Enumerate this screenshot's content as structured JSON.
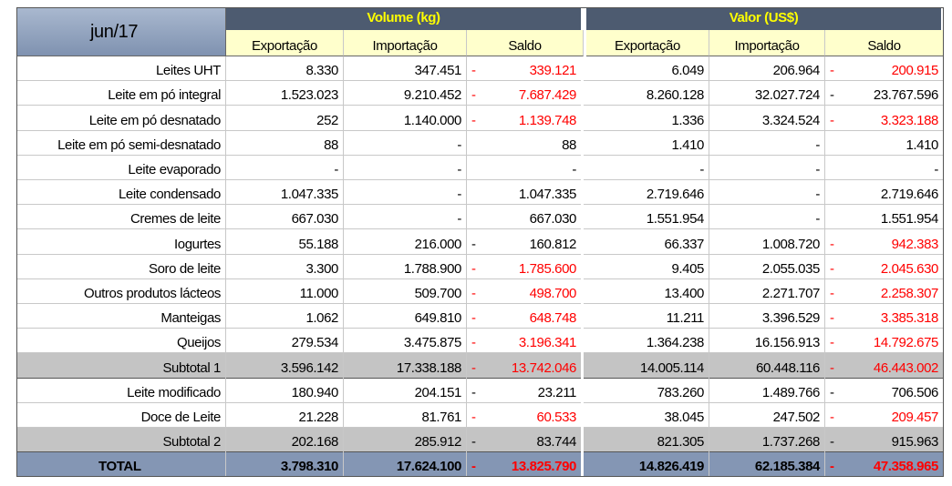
{
  "header": {
    "corner": "jun/17",
    "groups": [
      "Volume (kg)",
      "Valor (US$)"
    ],
    "columns": [
      "Exportação",
      "Importação",
      "Saldo",
      "Exportação",
      "Importação",
      "Saldo"
    ]
  },
  "table": {
    "rows": [
      {
        "label": "Leites UHT",
        "cells": [
          "8.330",
          "347.451",
          "-",
          "339.121",
          "6.049",
          "206.964",
          "-",
          "200.915"
        ],
        "red": [
          true,
          true
        ]
      },
      {
        "label": "Leite em pó integral",
        "cells": [
          "1.523.023",
          "9.210.452",
          "-",
          "7.687.429",
          "8.260.128",
          "32.027.724",
          "-",
          "23.767.596"
        ],
        "red": [
          true,
          false
        ]
      },
      {
        "label": "Leite em pó desnatado",
        "cells": [
          "252",
          "1.140.000",
          "-",
          "1.139.748",
          "1.336",
          "3.324.524",
          "-",
          "3.323.188"
        ],
        "red": [
          true,
          true
        ]
      },
      {
        "label": "Leite em pó semi-desnatado",
        "cells": [
          "88",
          "-",
          null,
          "88",
          "1.410",
          "-",
          null,
          "1.410"
        ],
        "red": [
          false,
          false
        ]
      },
      {
        "label": "Leite evaporado",
        "cells": [
          "-",
          "-",
          null,
          "-",
          "-",
          "-",
          null,
          "-"
        ],
        "red": [
          false,
          false
        ]
      },
      {
        "label": "Leite condensado",
        "cells": [
          "1.047.335",
          "-",
          null,
          "1.047.335",
          "2.719.646",
          "-",
          null,
          "2.719.646"
        ],
        "red": [
          false,
          false
        ]
      },
      {
        "label": "Cremes de leite",
        "cells": [
          "667.030",
          "-",
          null,
          "667.030",
          "1.551.954",
          "-",
          null,
          "1.551.954"
        ],
        "red": [
          false,
          false
        ]
      },
      {
        "label": "Iogurtes",
        "cells": [
          "55.188",
          "216.000",
          "-",
          "160.812",
          "66.337",
          "1.008.720",
          "-",
          "942.383"
        ],
        "red": [
          false,
          true
        ]
      },
      {
        "label": "Soro de leite",
        "cells": [
          "3.300",
          "1.788.900",
          "-",
          "1.785.600",
          "9.405",
          "2.055.035",
          "-",
          "2.045.630"
        ],
        "red": [
          true,
          true
        ]
      },
      {
        "label": "Outros produtos lácteos",
        "cells": [
          "11.000",
          "509.700",
          "-",
          "498.700",
          "13.400",
          "2.271.707",
          "-",
          "2.258.307"
        ],
        "red": [
          true,
          true
        ]
      },
      {
        "label": "Manteigas",
        "cells": [
          "1.062",
          "649.810",
          "-",
          "648.748",
          "11.211",
          "3.396.529",
          "-",
          "3.385.318"
        ],
        "red": [
          true,
          true
        ]
      },
      {
        "label": "Queijos",
        "cells": [
          "279.534",
          "3.475.875",
          "-",
          "3.196.341",
          "1.364.238",
          "16.156.913",
          "-",
          "14.792.675"
        ],
        "red": [
          true,
          true
        ]
      },
      {
        "label": "Subtotal 1",
        "style": "subtotal",
        "cells": [
          "3.596.142",
          "17.338.188",
          "-",
          "13.742.046",
          "14.005.114",
          "60.448.116",
          "-",
          "46.443.002"
        ],
        "red": [
          true,
          true
        ]
      },
      {
        "label": "Leite modificado",
        "cells": [
          "180.940",
          "204.151",
          "-",
          "23.211",
          "783.260",
          "1.489.766",
          "-",
          "706.506"
        ],
        "red": [
          false,
          false
        ]
      },
      {
        "label": "Doce de Leite",
        "cells": [
          "21.228",
          "81.761",
          "-",
          "60.533",
          "38.045",
          "247.502",
          "-",
          "209.457"
        ],
        "red": [
          true,
          true
        ]
      },
      {
        "label": "Subtotal 2",
        "style": "subtotal",
        "cells": [
          "202.168",
          "285.912",
          "-",
          "83.744",
          "821.305",
          "1.737.268",
          "-",
          "915.963"
        ],
        "red": [
          false,
          false
        ]
      },
      {
        "label": "TOTAL",
        "style": "total",
        "cells": [
          "3.798.310",
          "17.624.100",
          "-",
          "13.825.790",
          "14.826.419",
          "62.185.384",
          "-",
          "47.358.965"
        ],
        "red": [
          true,
          true
        ]
      }
    ]
  }
}
